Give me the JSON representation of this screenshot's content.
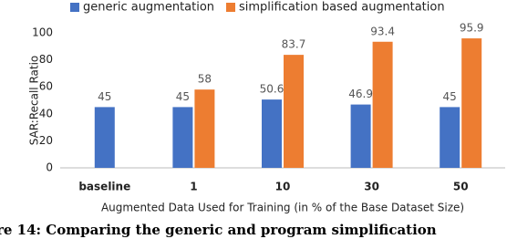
{
  "chart_data": {
    "type": "bar",
    "categories": [
      "baseline",
      "1",
      "10",
      "30",
      "50"
    ],
    "series": [
      {
        "name": "generic augmentation",
        "color": "#4472c4",
        "values": [
          45,
          45,
          50.6,
          46.9,
          45
        ]
      },
      {
        "name": "simplification based augmentation",
        "color": "#ed7d31",
        "values": [
          null,
          58,
          83.7,
          93.4,
          95.9
        ]
      }
    ],
    "ylim": [
      0,
      100
    ],
    "yticks": [
      0,
      20,
      40,
      60,
      80,
      100
    ],
    "grid": false,
    "y_label": "SAR:Recall Ratio",
    "x_label": "Augmented Data Used for Training (in % of the Base Dataset Size)",
    "legend": "top",
    "caption": "re 14: Comparing the generic and program simplification"
  }
}
